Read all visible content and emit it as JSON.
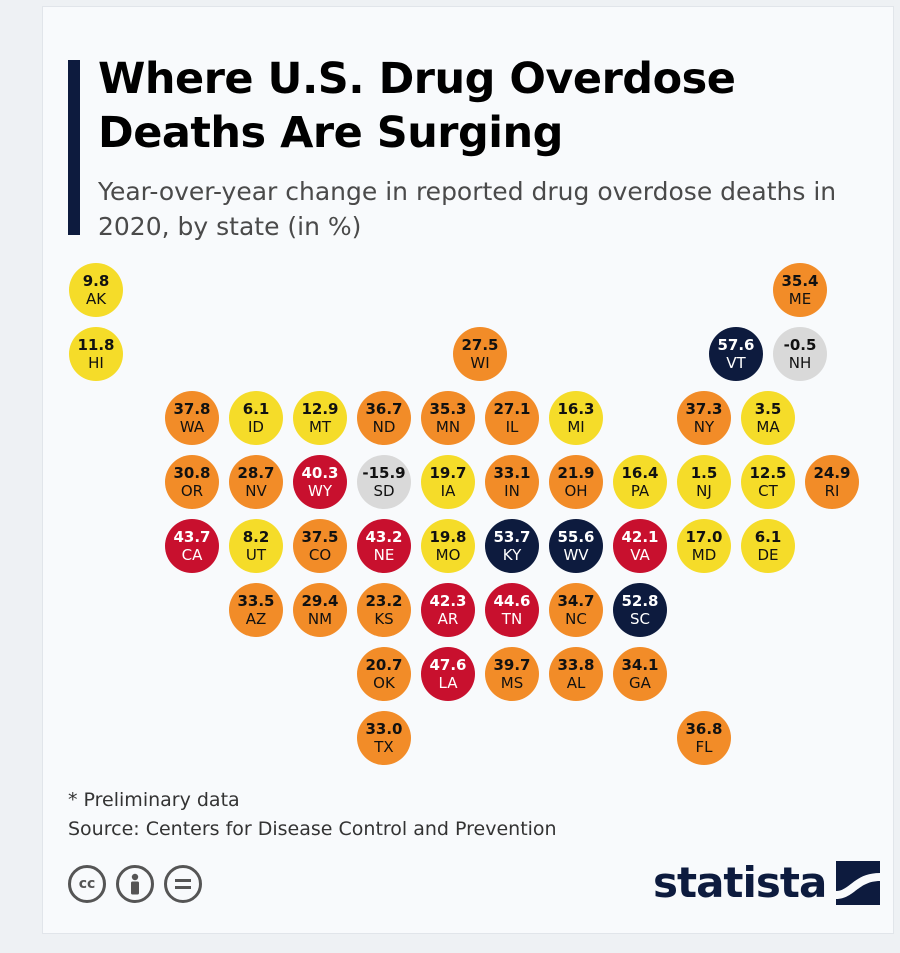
{
  "header": {
    "title": "Where U.S. Drug Overdose Deaths Are Surging",
    "subtitle": "Year-over-year change in reported drug overdose deaths in 2020, by state (in %)"
  },
  "colors": {
    "yellow": "#f5dc29",
    "orange": "#f28c28",
    "red": "#c8102e",
    "navy": "#0d1b3e",
    "gray": "#d9d9d9"
  },
  "chart_data": {
    "type": "tile-map",
    "title": "Where U.S. Drug Overdose Deaths Are Surging",
    "subtitle": "Year-over-year change in reported drug overdose deaths in 2020, by state (in %)",
    "unit": "%",
    "grid": {
      "columns": 12,
      "rows": 8
    },
    "states": [
      {
        "abbr": "AK",
        "value": "9.8",
        "col": 0,
        "row": 0,
        "color": "yellow"
      },
      {
        "abbr": "ME",
        "value": "35.4",
        "col": 11,
        "row": 0,
        "color": "orange"
      },
      {
        "abbr": "HI",
        "value": "11.8",
        "col": 0,
        "row": 1,
        "color": "yellow"
      },
      {
        "abbr": "WI",
        "value": "27.5",
        "col": 6,
        "row": 1,
        "color": "orange"
      },
      {
        "abbr": "VT",
        "value": "57.6",
        "col": 10,
        "row": 1,
        "color": "navy"
      },
      {
        "abbr": "NH",
        "value": "-0.5",
        "col": 11,
        "row": 1,
        "color": "gray"
      },
      {
        "abbr": "WA",
        "value": "37.8",
        "col": 1.5,
        "row": 2,
        "color": "orange"
      },
      {
        "abbr": "ID",
        "value": "6.1",
        "col": 2.5,
        "row": 2,
        "color": "yellow"
      },
      {
        "abbr": "MT",
        "value": "12.9",
        "col": 3.5,
        "row": 2,
        "color": "yellow"
      },
      {
        "abbr": "ND",
        "value": "36.7",
        "col": 4.5,
        "row": 2,
        "color": "orange"
      },
      {
        "abbr": "MN",
        "value": "35.3",
        "col": 5.5,
        "row": 2,
        "color": "orange"
      },
      {
        "abbr": "IL",
        "value": "27.1",
        "col": 6.5,
        "row": 2,
        "color": "orange"
      },
      {
        "abbr": "MI",
        "value": "16.3",
        "col": 7.5,
        "row": 2,
        "color": "yellow"
      },
      {
        "abbr": "NY",
        "value": "37.3",
        "col": 9.5,
        "row": 2,
        "color": "orange"
      },
      {
        "abbr": "MA",
        "value": "3.5",
        "col": 10.5,
        "row": 2,
        "color": "yellow"
      },
      {
        "abbr": "OR",
        "value": "30.8",
        "col": 1.5,
        "row": 3,
        "color": "orange"
      },
      {
        "abbr": "NV",
        "value": "28.7",
        "col": 2.5,
        "row": 3,
        "color": "orange"
      },
      {
        "abbr": "WY",
        "value": "40.3",
        "col": 3.5,
        "row": 3,
        "color": "red"
      },
      {
        "abbr": "SD",
        "value": "-15.9",
        "col": 4.5,
        "row": 3,
        "color": "gray"
      },
      {
        "abbr": "IA",
        "value": "19.7",
        "col": 5.5,
        "row": 3,
        "color": "yellow"
      },
      {
        "abbr": "IN",
        "value": "33.1",
        "col": 6.5,
        "row": 3,
        "color": "orange"
      },
      {
        "abbr": "OH",
        "value": "21.9",
        "col": 7.5,
        "row": 3,
        "color": "orange"
      },
      {
        "abbr": "PA",
        "value": "16.4",
        "col": 8.5,
        "row": 3,
        "color": "yellow"
      },
      {
        "abbr": "NJ",
        "value": "1.5",
        "col": 9.5,
        "row": 3,
        "color": "yellow"
      },
      {
        "abbr": "CT",
        "value": "12.5",
        "col": 10.5,
        "row": 3,
        "color": "yellow"
      },
      {
        "abbr": "RI",
        "value": "24.9",
        "col": 11.5,
        "row": 3,
        "color": "orange"
      },
      {
        "abbr": "CA",
        "value": "43.7",
        "col": 1.5,
        "row": 4,
        "color": "red"
      },
      {
        "abbr": "UT",
        "value": "8.2",
        "col": 2.5,
        "row": 4,
        "color": "yellow"
      },
      {
        "abbr": "CO",
        "value": "37.5",
        "col": 3.5,
        "row": 4,
        "color": "orange"
      },
      {
        "abbr": "NE",
        "value": "43.2",
        "col": 4.5,
        "row": 4,
        "color": "red"
      },
      {
        "abbr": "MO",
        "value": "19.8",
        "col": 5.5,
        "row": 4,
        "color": "yellow"
      },
      {
        "abbr": "KY",
        "value": "53.7",
        "col": 6.5,
        "row": 4,
        "color": "navy"
      },
      {
        "abbr": "WV",
        "value": "55.6",
        "col": 7.5,
        "row": 4,
        "color": "navy"
      },
      {
        "abbr": "VA",
        "value": "42.1",
        "col": 8.5,
        "row": 4,
        "color": "red"
      },
      {
        "abbr": "MD",
        "value": "17.0",
        "col": 9.5,
        "row": 4,
        "color": "yellow"
      },
      {
        "abbr": "DE",
        "value": "6.1",
        "col": 10.5,
        "row": 4,
        "color": "yellow"
      },
      {
        "abbr": "AZ",
        "value": "33.5",
        "col": 2.5,
        "row": 5,
        "color": "orange"
      },
      {
        "abbr": "NM",
        "value": "29.4",
        "col": 3.5,
        "row": 5,
        "color": "orange"
      },
      {
        "abbr": "KS",
        "value": "23.2",
        "col": 4.5,
        "row": 5,
        "color": "orange"
      },
      {
        "abbr": "AR",
        "value": "42.3",
        "col": 5.5,
        "row": 5,
        "color": "red"
      },
      {
        "abbr": "TN",
        "value": "44.6",
        "col": 6.5,
        "row": 5,
        "color": "red"
      },
      {
        "abbr": "NC",
        "value": "34.7",
        "col": 7.5,
        "row": 5,
        "color": "orange"
      },
      {
        "abbr": "SC",
        "value": "52.8",
        "col": 8.5,
        "row": 5,
        "color": "navy"
      },
      {
        "abbr": "OK",
        "value": "20.7",
        "col": 4.5,
        "row": 6,
        "color": "orange"
      },
      {
        "abbr": "LA",
        "value": "47.6",
        "col": 5.5,
        "row": 6,
        "color": "red"
      },
      {
        "abbr": "MS",
        "value": "39.7",
        "col": 6.5,
        "row": 6,
        "color": "orange"
      },
      {
        "abbr": "AL",
        "value": "33.8",
        "col": 7.5,
        "row": 6,
        "color": "orange"
      },
      {
        "abbr": "GA",
        "value": "34.1",
        "col": 8.5,
        "row": 6,
        "color": "orange"
      },
      {
        "abbr": "TX",
        "value": "33.0",
        "col": 4.5,
        "row": 7,
        "color": "orange"
      },
      {
        "abbr": "FL",
        "value": "36.8",
        "col": 9.5,
        "row": 7,
        "color": "orange"
      }
    ]
  },
  "footer": {
    "note": "* Preliminary data",
    "source": "Source: Centers for Disease Control and Prevention",
    "license_icons": [
      "cc-icon",
      "person-icon",
      "equals-icon"
    ],
    "brand": "statista"
  }
}
